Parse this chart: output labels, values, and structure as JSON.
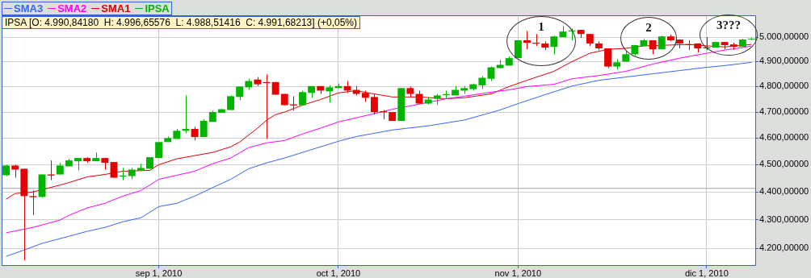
{
  "chart_data": {
    "type": "candlestick",
    "log": true,
    "grid": true,
    "legend": "top left",
    "categories": [
      null,
      null,
      null,
      null,
      null,
      null,
      null,
      null,
      null,
      null,
      null,
      null,
      null,
      null,
      null,
      null,
      null,
      "sep 1, 2010",
      null,
      null,
      null,
      null,
      null,
      null,
      null,
      null,
      null,
      null,
      null,
      null,
      null,
      null,
      null,
      null,
      null,
      null,
      null,
      "oct 1, 2010",
      null,
      null,
      null,
      null,
      null,
      null,
      null,
      null,
      null,
      null,
      null,
      null,
      null,
      null,
      null,
      null,
      null,
      null,
      null,
      "nov 1, 2010",
      null,
      null,
      null,
      null,
      null,
      null,
      null,
      null,
      null,
      null,
      null,
      null,
      null,
      null,
      null,
      null,
      null,
      null,
      null,
      null,
      "dic 1, 2010",
      null,
      null,
      null,
      null,
      null
    ],
    "ylim": [
      4142,
      5091
    ],
    "yticks": [
      {
        "value": 4200,
        "label": "4.200,00000"
      },
      {
        "value": 4300,
        "label": "4.300,00000"
      },
      {
        "value": 4400,
        "label": "4.400,00000"
      },
      {
        "value": 4500,
        "label": "4.500,00000"
      },
      {
        "value": 4600,
        "label": "4.600,00000"
      },
      {
        "value": 4700,
        "label": "4.700,00000"
      },
      {
        "value": 4800,
        "label": "4.800,00000"
      },
      {
        "value": 4900,
        "label": "4.900,00000"
      },
      {
        "value": 5000,
        "label": "5.000,00000"
      }
    ],
    "ref_lines": [
      {
        "axis": "y",
        "value": 4413,
        "color": "#a0a0a0"
      }
    ],
    "annotations": [
      "IPSA [O: 4.990,84180  H: 4.996,65576  L: 4.988,51416  C: 4.991,68213] (+0,05%)",
      "1",
      "2",
      "3???"
    ],
    "series": [
      {
        "name": "SMA3",
        "type": "line",
        "color": "#3366ff",
        "values": [
          4172,
          null,
          4194,
          null,
          4217,
          null,
          null,
          4242,
          null,
          4259,
          null,
          4273,
          null,
          4293,
          null,
          4307,
          null,
          4347,
          null,
          4359,
          null,
          4385,
          null,
          4416,
          null,
          4446,
          null,
          4485,
          null,
          4507,
          null,
          4525,
          null,
          4546,
          null,
          null,
          null,
          4588,
          null,
          4606,
          null,
          null,
          null,
          4631,
          null,
          null,
          null,
          4647,
          null,
          null,
          null,
          4669,
          null,
          null,
          null,
          4708,
          null,
          4733,
          null,
          null,
          4768,
          null,
          null,
          4802,
          null,
          null,
          4825,
          null,
          null,
          4838,
          null,
          null,
          4851,
          null,
          null,
          4864,
          null,
          null,
          4877,
          null,
          4884,
          null,
          null,
          4897
        ]
      },
      {
        "name": "SMA2",
        "type": "line",
        "color": "#ff00ff",
        "values": [
          4254,
          null,
          null,
          4273,
          null,
          null,
          4299,
          4316,
          null,
          4342,
          null,
          4359,
          null,
          4385,
          null,
          4405,
          null,
          4446,
          null,
          4461,
          null,
          4476,
          null,
          4504,
          null,
          4525,
          null,
          4564,
          null,
          4582,
          null,
          4591,
          null,
          4616,
          null,
          4638,
          null,
          4662,
          null,
          4678,
          null,
          4694,
          null,
          4711,
          null,
          4724,
          null,
          null,
          null,
          4752,
          null,
          4762,
          null,
          null,
          4778,
          null,
          4787,
          null,
          4800,
          null,
          null,
          4809,
          null,
          4831,
          null,
          null,
          4844,
          null,
          null,
          4861,
          null,
          null,
          4890,
          null,
          null,
          4914,
          null,
          null,
          4934,
          null,
          4947,
          null,
          4957,
          4964
        ]
      },
      {
        "name": "SMA1",
        "type": "line",
        "color": "#e00000",
        "values": [
          4374,
          4394,
          4397,
          4400,
          null,
          null,
          4425,
          4434,
          null,
          4455,
          null,
          4464,
          null,
          4476,
          null,
          null,
          4479,
          4500,
          null,
          4522,
          null,
          4534,
          null,
          4546,
          null,
          4567,
          4585,
          null,
          4638,
          4669,
          4690,
          4700,
          null,
          4727,
          null,
          4749,
          null,
          4775,
          null,
          4784,
          null,
          4771,
          null,
          4759,
          null,
          null,
          4759,
          null,
          null,
          4752,
          null,
          4756,
          null,
          null,
          4771,
          null,
          4800,
          null,
          4825,
          null,
          null,
          4861,
          null,
          4900,
          null,
          4934,
          null,
          4950,
          null,
          4954,
          null,
          4964,
          null,
          null,
          null,
          null,
          4970,
          null,
          4964,
          null,
          4960,
          null,
          null,
          4970
        ]
      },
      {
        "name": "IPSA",
        "color": "#00b400",
        "colors": [
          "#00b400",
          "#e60000",
          "#e60000",
          "#e60000",
          "#00b400",
          "#e60000",
          "#00b400",
          "#00b400",
          "#00b400",
          "#e60000",
          "#00b400",
          "#e60000",
          "#e60000",
          "#00b400",
          "#00b400",
          "#00b400",
          "#00b400",
          "#00b400",
          "#00b400",
          "#00b400",
          "#00b400",
          "#e60000",
          "#00b400",
          "#00b400",
          "#00b400",
          "#00b400",
          "#00b400",
          "#00b400",
          "#e60000",
          "#e60000",
          "#e60000",
          "#e60000",
          "#e60000",
          "#00b400",
          "#00b400",
          "#e60000",
          "#00b400",
          "#00b400",
          "#e60000",
          "#e60000",
          "#e60000",
          "#e60000",
          "#e60000",
          "#e60000",
          "#00b400",
          "#e60000",
          "#e60000",
          "#00b400",
          "#00b400",
          "#00b400",
          "#00b400",
          "#00b400",
          "#00b400",
          "#00b400",
          "#00b400",
          "#00b400",
          "#00b400",
          "#00b400",
          "#e60000",
          "#e60000",
          "#e60000",
          "#00b400",
          "#00b400",
          "#00b400",
          "#e60000",
          "#e60000",
          "#e60000",
          "#e60000",
          "#00b400",
          "#00b400",
          "#00b400",
          "#00b400",
          "#e60000",
          "#00b400",
          "#e60000",
          "#e60000",
          "#e60000",
          "#e60000",
          "#e60000",
          "#00b400",
          "#e60000",
          "#e60000",
          "#00b400",
          "#00b400"
        ],
        "ohlc": [
          [
            4461,
            4500,
            4458,
            4497
          ],
          [
            4497,
            4500,
            4452,
            4482
          ],
          [
            4485,
            4485,
            4158,
            4385
          ],
          [
            4385,
            4405,
            4316,
            4381
          ],
          [
            4382,
            4464,
            4379,
            4464
          ],
          [
            4464,
            4516,
            4443,
            4460
          ],
          [
            4464,
            4507,
            4464,
            4497
          ],
          [
            4494,
            4522,
            4494,
            4516
          ],
          [
            4513,
            4525,
            4479,
            4525
          ],
          [
            4525,
            4528,
            4507,
            4513
          ],
          [
            4513,
            4546,
            4513,
            4525
          ],
          [
            4525,
            4525,
            4482,
            4507
          ],
          [
            4510,
            4510,
            4452,
            4452
          ],
          [
            4456,
            4488,
            4443,
            4460
          ],
          [
            4458,
            4488,
            4446,
            4482
          ],
          [
            4479,
            4504,
            4479,
            4488
          ],
          [
            4485,
            4528,
            4485,
            4528
          ],
          [
            4525,
            4585,
            4525,
            4585
          ],
          [
            4585,
            4606,
            4585,
            4600
          ],
          [
            4597,
            4635,
            4597,
            4628
          ],
          [
            4628,
            4765,
            4619,
            4635
          ],
          [
            4635,
            4644,
            4591,
            4604
          ],
          [
            4604,
            4672,
            4604,
            4666
          ],
          [
            4662,
            4705,
            4662,
            4700
          ],
          [
            4697,
            4711,
            4697,
            4711
          ],
          [
            4708,
            4765,
            4708,
            4762
          ],
          [
            4759,
            4800,
            4746,
            4800
          ],
          [
            4797,
            4831,
            4787,
            4822
          ],
          [
            4828,
            4838,
            4802,
            4809
          ],
          [
            4818,
            4848,
            4597,
            4814
          ],
          [
            4818,
            4818,
            4768,
            4768
          ],
          [
            4771,
            4771,
            4727,
            4727
          ],
          [
            4730,
            4762,
            4705,
            4726
          ],
          [
            4727,
            4784,
            4727,
            4778
          ],
          [
            4775,
            4802,
            4756,
            4802
          ],
          [
            4802,
            4802,
            4771,
            4784
          ],
          [
            4781,
            4805,
            4737,
            4797
          ],
          [
            4794,
            4812,
            4794,
            4802
          ],
          [
            4802,
            4822,
            4775,
            4784
          ],
          [
            4787,
            4802,
            4765,
            4771
          ],
          [
            4775,
            4784,
            4740,
            4756
          ],
          [
            4759,
            4771,
            4690,
            4700
          ],
          [
            4703,
            4708,
            4672,
            4699
          ],
          [
            4700,
            4700,
            4666,
            4666
          ],
          [
            4666,
            4794,
            4666,
            4794
          ],
          [
            4794,
            4800,
            4759,
            4771
          ],
          [
            4771,
            4784,
            4733,
            4733
          ],
          [
            4733,
            4759,
            4730,
            4749
          ],
          [
            4752,
            4771,
            4727,
            4765
          ],
          [
            4766,
            4784,
            4752,
            4770
          ],
          [
            4765,
            4802,
            4765,
            4787
          ],
          [
            4784,
            4802,
            4771,
            4794
          ],
          [
            4790,
            4812,
            4784,
            4809
          ],
          [
            4805,
            4841,
            4790,
            4835
          ],
          [
            4831,
            4880,
            4822,
            4877
          ],
          [
            4874,
            4907,
            4874,
            4887
          ],
          [
            4884,
            4921,
            4884,
            4914
          ],
          [
            4914,
            4987,
            4914,
            4987
          ],
          [
            4987,
            5026,
            4950,
            4977
          ],
          [
            4977,
            5013,
            4964,
            4973
          ],
          [
            4974,
            4983,
            4947,
            4957
          ],
          [
            4960,
            5006,
            4930,
            5003
          ],
          [
            5000,
            5046,
            5000,
            5023
          ],
          [
            5024,
            5036,
            4987,
            5028
          ],
          [
            5030,
            5030,
            4997,
            5013
          ],
          [
            5013,
            5013,
            4964,
            4974
          ],
          [
            4974,
            4983,
            4947,
            4954
          ],
          [
            4954,
            4954,
            4874,
            4880
          ],
          [
            4880,
            4910,
            4868,
            4897
          ],
          [
            4900,
            4944,
            4900,
            4930
          ],
          [
            4930,
            4967,
            4924,
            4967
          ],
          [
            4964,
            4993,
            4964,
            4987
          ],
          [
            4987,
            4987,
            4930,
            4950
          ],
          [
            4950,
            5006,
            4950,
            5003
          ],
          [
            5003,
            5010,
            4983,
            4987
          ],
          [
            4990,
            4990,
            4954,
            4974
          ],
          [
            4971,
            4987,
            4947,
            4967
          ],
          [
            4974,
            4974,
            4937,
            4954
          ],
          [
            4958,
            5000,
            4947,
            4954
          ],
          [
            4957,
            4980,
            4957,
            4980
          ],
          [
            4980,
            4980,
            4950,
            4967
          ],
          [
            4970,
            4977,
            4947,
            4960
          ],
          [
            4960,
            4993,
            4960,
            4990
          ],
          [
            4990.8,
            4996.7,
            4988.5,
            4991.7
          ]
        ]
      }
    ]
  }
}
